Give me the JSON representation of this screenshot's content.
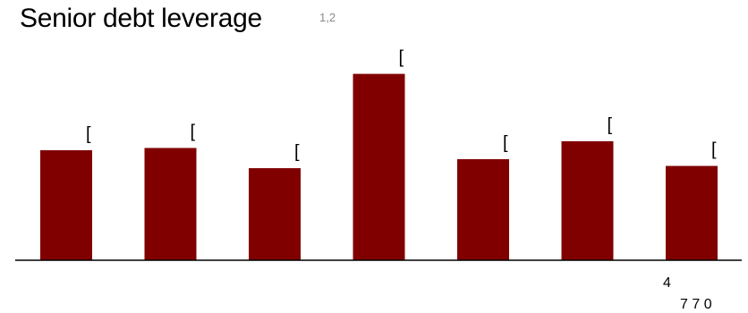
{
  "title": "Senior debt leverage",
  "title_superscript": "1,2",
  "chart_data": {
    "type": "bar",
    "categories": [
      "",
      "",
      "",
      "",
      "",
      "",
      ""
    ],
    "values": [
      4.9,
      5.0,
      4.1,
      8.3,
      4.5,
      5.3,
      4.2
    ],
    "data_labels": [
      "[",
      "[",
      "[",
      "[",
      "[",
      "[",
      "["
    ],
    "ylim": [
      0,
      9.2
    ],
    "bar_color": "#800000",
    "axis_color": "#000000",
    "grid": false,
    "legend": "none",
    "x_tick_labels": [
      "4",
      "7 7 0"
    ]
  }
}
